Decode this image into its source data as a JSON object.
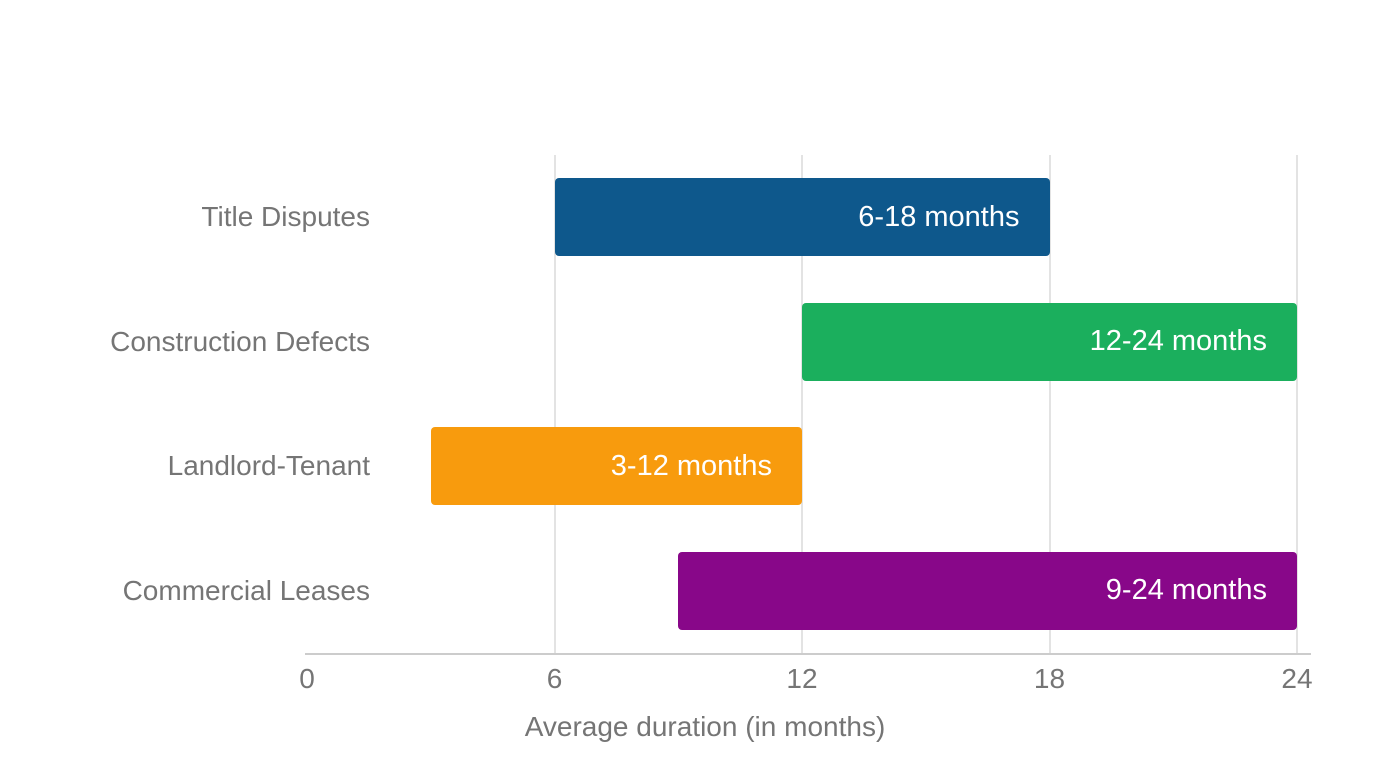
{
  "chart_data": {
    "type": "bar",
    "orientation": "horizontal_range",
    "title": "",
    "xlabel": "Average duration (in months)",
    "xlim": [
      0,
      24
    ],
    "xticks": [
      0,
      6,
      12,
      18,
      24
    ],
    "grid": "vertical",
    "legend": "none",
    "categories": [
      "Title Disputes",
      "Construction Defects",
      "Landlord-Tenant",
      "Commercial Leases"
    ],
    "series": [
      {
        "category": "Title Disputes",
        "start": 6,
        "end": 18,
        "label": "6-18 months",
        "color": "#0E588C"
      },
      {
        "category": "Construction Defects",
        "start": 12,
        "end": 24,
        "label": "12-24 months",
        "color": "#1BAF5D"
      },
      {
        "category": "Landlord-Tenant",
        "start": 3,
        "end": 12,
        "label": "3-12 months",
        "color": "#F89B0D"
      },
      {
        "category": "Commercial Leases",
        "start": 9,
        "end": 24,
        "label": "9-24 months",
        "color": "#880789"
      }
    ]
  },
  "colors": {
    "text": "#757575",
    "gridline": "#E3E3E3",
    "axis_line": "#CCCCCC",
    "bar_label": "#FFFFFF",
    "background": "#FFFFFF"
  }
}
